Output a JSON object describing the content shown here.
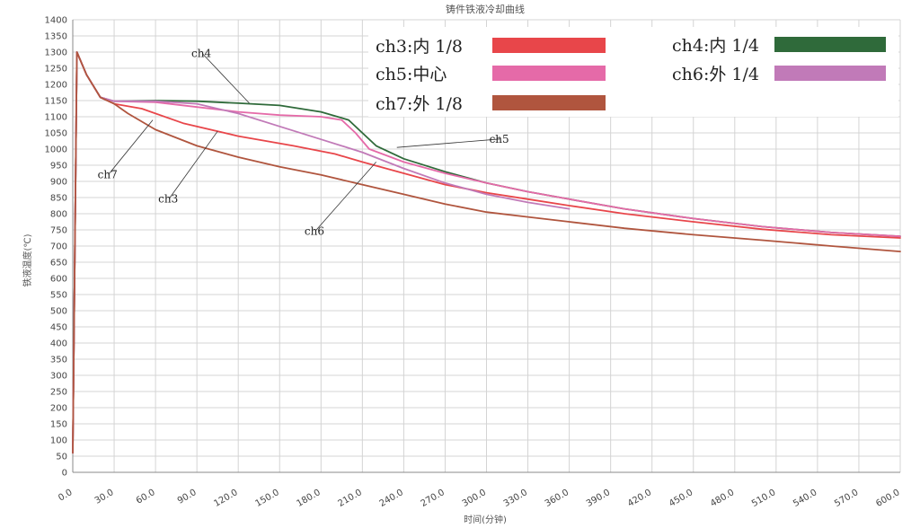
{
  "chart_data": {
    "type": "line",
    "title": "铸件铁液冷却曲线",
    "xlabel": "时间(分钟)",
    "ylabel": "铁液温度(℃)",
    "xlim": [
      0,
      600
    ],
    "ylim": [
      0,
      1400
    ],
    "x_ticks": [
      "0.0",
      "30.0",
      "60.0",
      "90.0",
      "120.0",
      "150.0",
      "180.0",
      "210.0",
      "240.0",
      "270.0",
      "300.0",
      "330.0",
      "360.0",
      "390.0",
      "420.0",
      "450.0",
      "480.0",
      "510.0",
      "540.0",
      "570.0",
      "600.0"
    ],
    "y_ticks": [
      "0",
      "50",
      "100",
      "150",
      "200",
      "250",
      "300",
      "350",
      "400",
      "450",
      "500",
      "550",
      "600",
      "650",
      "700",
      "750",
      "800",
      "850",
      "900",
      "950",
      "1000",
      "1050",
      "1100",
      "1150",
      "1200",
      "1250",
      "1300",
      "1350",
      "1400"
    ],
    "grid": true,
    "legend_position": "top-right",
    "series": [
      {
        "name": "ch3:内 1/8",
        "color": "#e8464a",
        "x": [
          0,
          3,
          10,
          20,
          30,
          50,
          80,
          120,
          160,
          190,
          210,
          240,
          270,
          300,
          330,
          360,
          400,
          450,
          500,
          550,
          600
        ],
        "y": [
          60,
          1300,
          1230,
          1160,
          1140,
          1125,
          1080,
          1040,
          1010,
          985,
          960,
          925,
          890,
          865,
          845,
          825,
          800,
          775,
          752,
          735,
          725
        ]
      },
      {
        "name": "ch4:内 1/4",
        "color": "#2f6a3a",
        "x": [
          0,
          3,
          10,
          20,
          30,
          60,
          90,
          120,
          150,
          180,
          200,
          210,
          220,
          240,
          270,
          300,
          330,
          360,
          400,
          450,
          500,
          550,
          600
        ],
        "y": [
          60,
          1300,
          1230,
          1160,
          1148,
          1150,
          1148,
          1142,
          1135,
          1115,
          1090,
          1050,
          1010,
          970,
          930,
          895,
          868,
          845,
          815,
          785,
          760,
          742,
          730
        ]
      },
      {
        "name": "ch5:中心",
        "color": "#e56aa8",
        "x": [
          0,
          3,
          10,
          20,
          30,
          60,
          90,
          120,
          150,
          180,
          195,
          205,
          215,
          240,
          270,
          300,
          330,
          360,
          400,
          450,
          500,
          550,
          600
        ],
        "y": [
          60,
          1300,
          1230,
          1160,
          1148,
          1145,
          1130,
          1115,
          1105,
          1100,
          1090,
          1050,
          1000,
          960,
          925,
          895,
          868,
          845,
          815,
          785,
          760,
          742,
          730
        ]
      },
      {
        "name": "ch6:外 1/4",
        "color": "#c17ab8",
        "x": [
          0,
          3,
          10,
          20,
          30,
          60,
          90,
          120,
          150,
          180,
          210,
          240,
          270,
          300,
          330,
          360
        ],
        "y": [
          60,
          1300,
          1230,
          1160,
          1148,
          1148,
          1140,
          1110,
          1070,
          1030,
          990,
          940,
          895,
          860,
          835,
          815
        ]
      },
      {
        "name": "ch7:外 1/8",
        "color": "#b0553e",
        "x": [
          0,
          3,
          10,
          20,
          30,
          40,
          60,
          90,
          120,
          150,
          180,
          210,
          240,
          270,
          300,
          330,
          360,
          400,
          450,
          500,
          550,
          600
        ],
        "y": [
          60,
          1300,
          1230,
          1160,
          1140,
          1110,
          1060,
          1010,
          975,
          945,
          920,
          890,
          860,
          830,
          805,
          790,
          775,
          755,
          735,
          718,
          700,
          683
        ]
      }
    ],
    "annotations": [
      {
        "text": "ch4",
        "x": 86,
        "y": 1285,
        "point": [
          128,
          1142
        ]
      },
      {
        "text": "ch5",
        "x": 302,
        "y": 1020,
        "point": [
          235,
          1005
        ]
      },
      {
        "text": "ch7",
        "x": 18,
        "y": 910,
        "point": [
          58,
          1090
        ]
      },
      {
        "text": "ch3",
        "x": 62,
        "y": 835,
        "point": [
          105,
          1055
        ]
      },
      {
        "text": "ch6",
        "x": 168,
        "y": 735,
        "point": [
          220,
          960
        ]
      }
    ]
  }
}
